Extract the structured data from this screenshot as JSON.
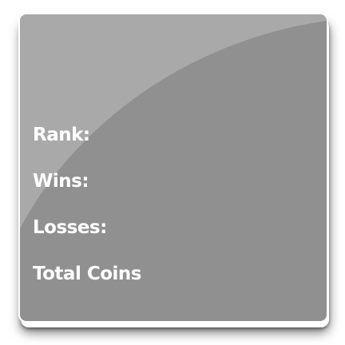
{
  "colors": {
    "panel_background": "#909090",
    "panel_border": "#ffffff",
    "gloss_highlight": "#a9a9a9",
    "label_text": "#ffffff"
  },
  "stats_panel": {
    "rank_label": "Rank:",
    "wins_label": "Wins:",
    "losses_label": "Losses:",
    "total_coins_label": "Total Coins"
  }
}
